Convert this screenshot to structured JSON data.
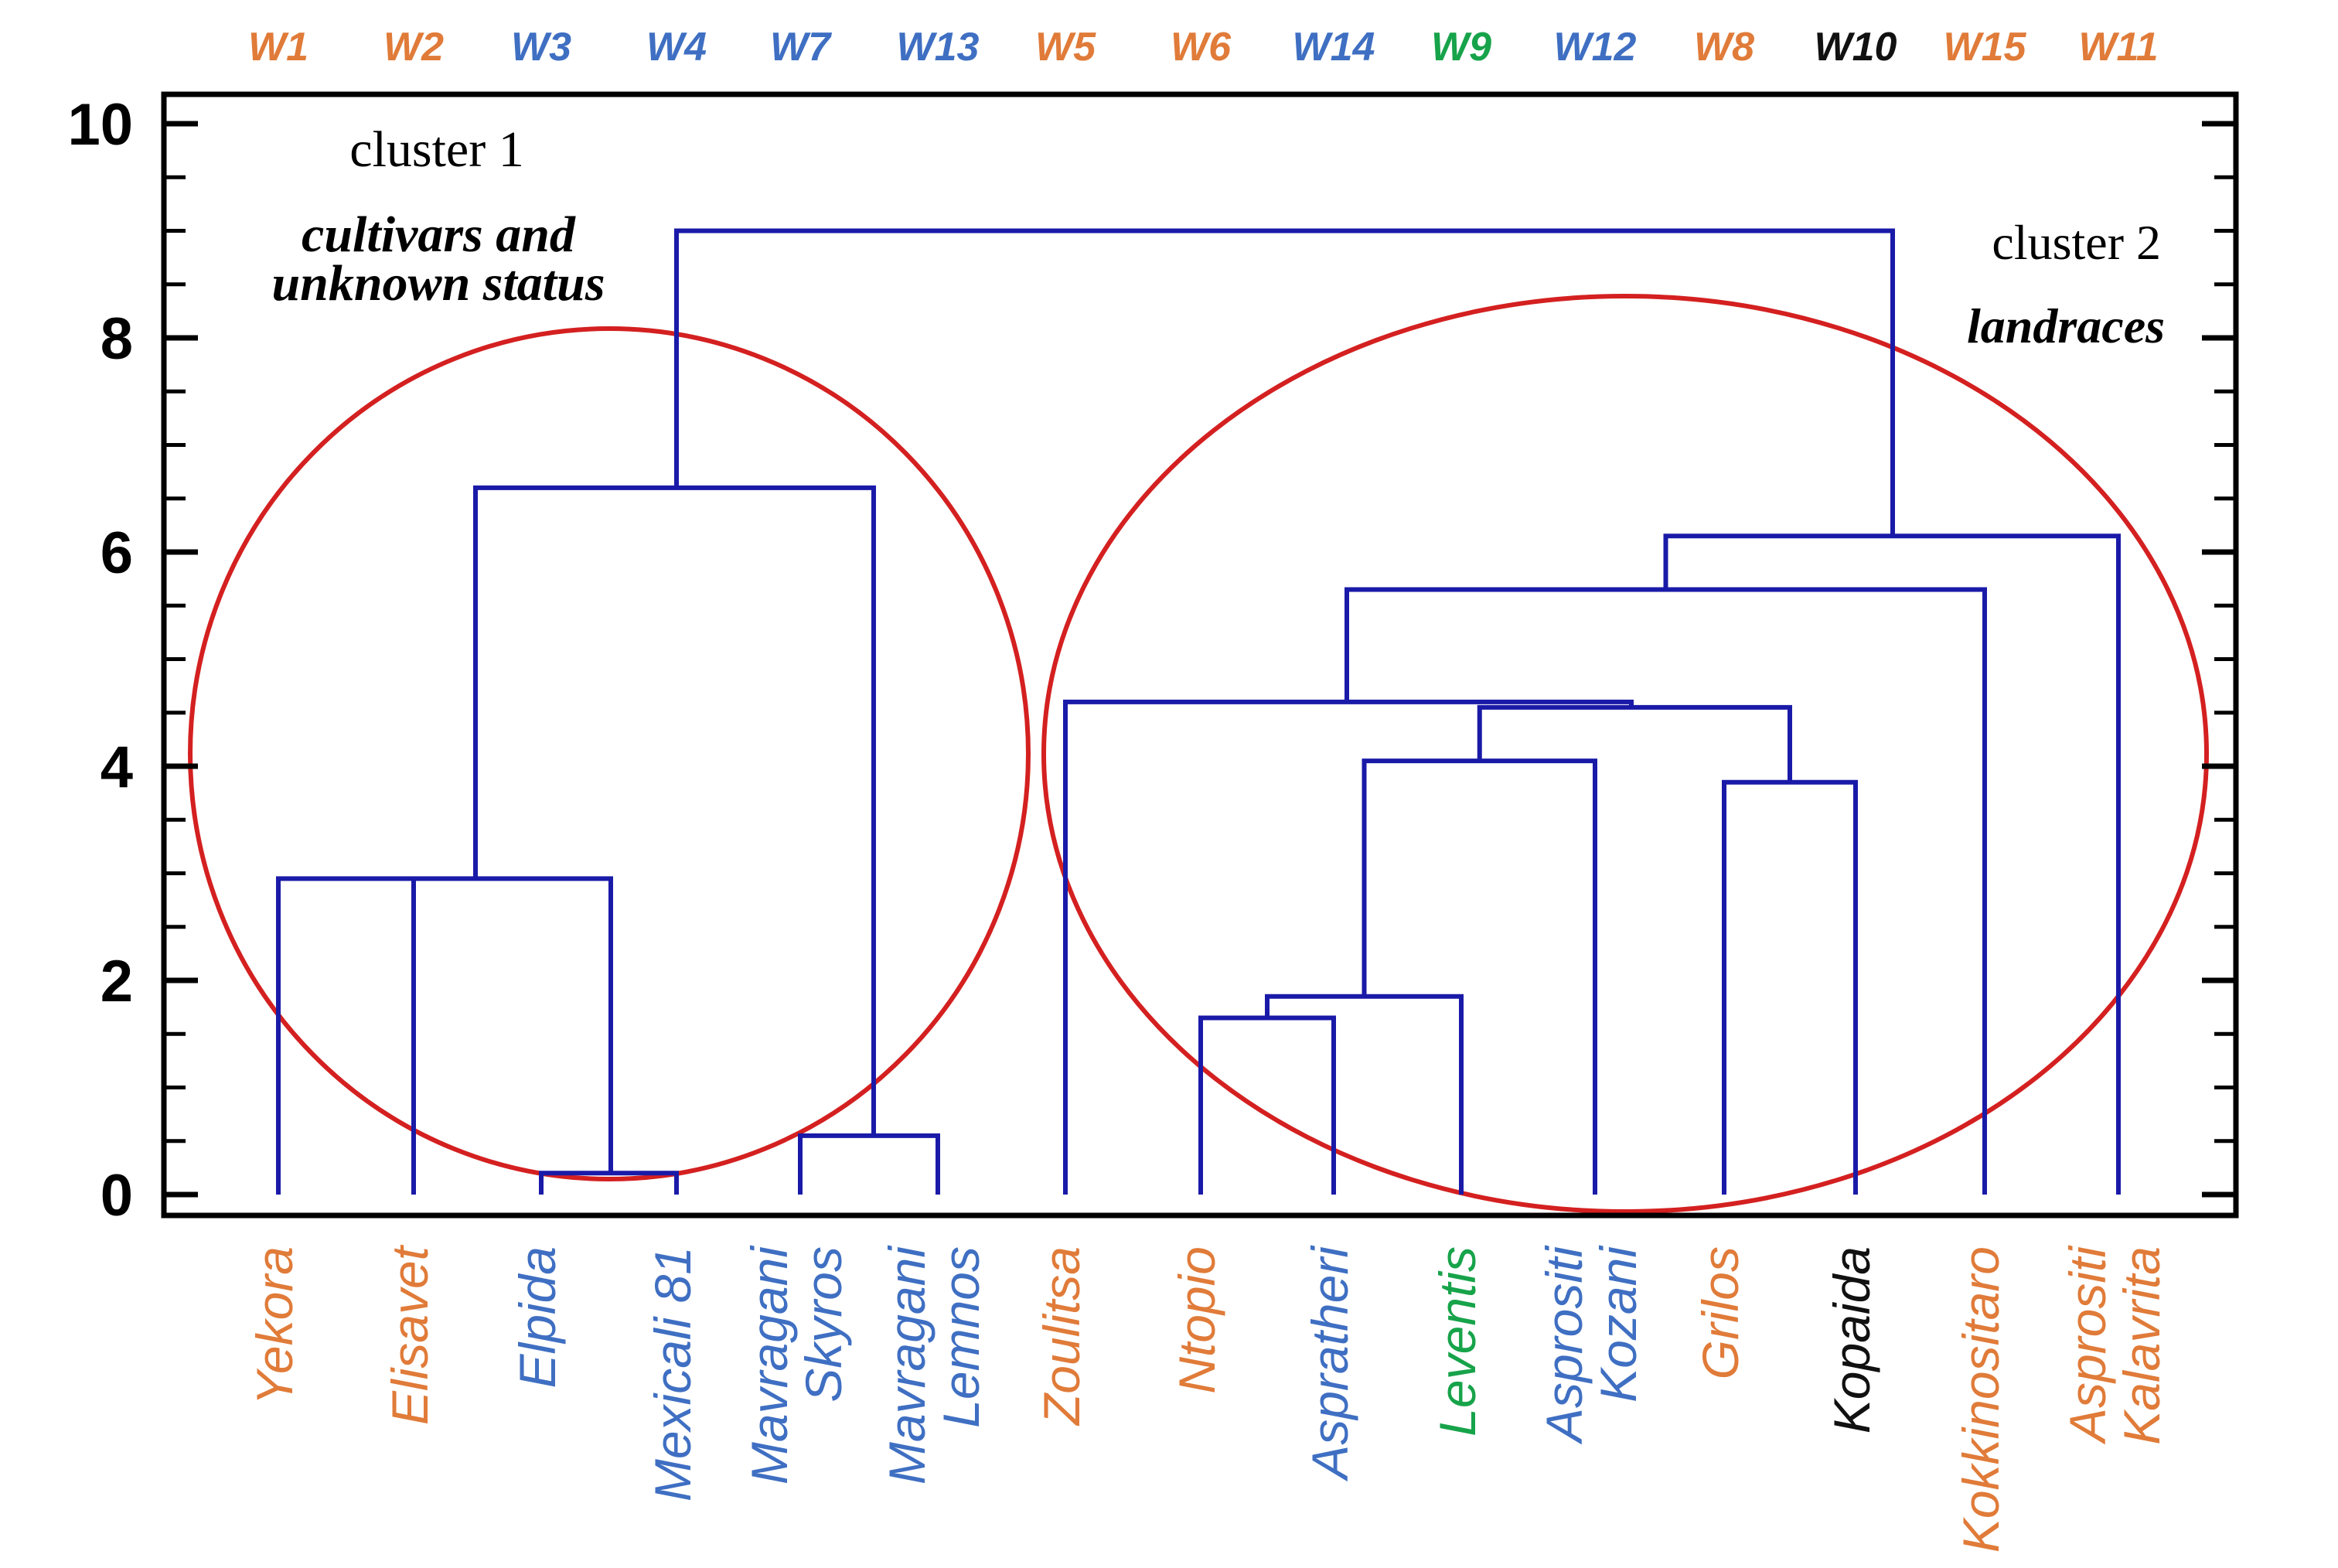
{
  "chart_data": {
    "type": "dendrogram",
    "y_axis": {
      "ylim": [
        0,
        10
      ],
      "ticks": [
        0,
        2,
        4,
        6,
        8,
        10
      ],
      "minor_step": 0.5
    },
    "leaves": [
      {
        "code": "W1",
        "name_lines": [
          "Yekora"
        ],
        "color": "#e07b39"
      },
      {
        "code": "W2",
        "name_lines": [
          "Elisavet"
        ],
        "color": "#e07b39"
      },
      {
        "code": "W3",
        "name_lines": [
          "Elpida"
        ],
        "color": "#3f6fc2"
      },
      {
        "code": "W4",
        "name_lines": [
          "Mexicali 81"
        ],
        "color": "#3f6fc2"
      },
      {
        "code": "W7",
        "name_lines": [
          "Mavragani",
          "Skyros"
        ],
        "color": "#3f6fc2"
      },
      {
        "code": "W13",
        "name_lines": [
          "Mavragani",
          "Lemnos"
        ],
        "color": "#3f6fc2"
      },
      {
        "code": "W5",
        "name_lines": [
          "Zoulitsa"
        ],
        "color": "#e07b39"
      },
      {
        "code": "W6",
        "name_lines": [
          "Ntopio"
        ],
        "color": "#e07b39"
      },
      {
        "code": "W14",
        "name_lines": [
          "Aspratheri"
        ],
        "color": "#3f6fc2"
      },
      {
        "code": "W9",
        "name_lines": [
          "Leventis"
        ],
        "color": "#17a34a"
      },
      {
        "code": "W12",
        "name_lines": [
          "Asprositi",
          "Kozani"
        ],
        "color": "#3f6fc2"
      },
      {
        "code": "W8",
        "name_lines": [
          "Grilos"
        ],
        "color": "#e07b39"
      },
      {
        "code": "W10",
        "name_lines": [
          "Kopaida"
        ],
        "color": "#111111"
      },
      {
        "code": "W15",
        "name_lines": [
          "Kokkinositaro"
        ],
        "color": "#e07b39"
      },
      {
        "code": "W11",
        "name_lines": [
          "Asprositi",
          "Kalavrita"
        ],
        "color": "#e07b39"
      }
    ],
    "merges": [
      {
        "children": [
          "W3",
          "W4"
        ],
        "height": 0.2
      },
      {
        "children": [
          "W7",
          "W13"
        ],
        "height": 0.55
      },
      {
        "children": [
          "W6",
          "W14"
        ],
        "height": 1.65
      },
      {
        "children": [
          "W6+W14",
          "W9"
        ],
        "height": 1.85
      },
      {
        "children": [
          "W8",
          "W10"
        ],
        "height": 3.85
      },
      {
        "children": [
          "W1",
          "W2",
          "W3+W4"
        ],
        "height": 2.95
      },
      {
        "children": [
          "W6+W14+W9",
          "W12"
        ],
        "height": 4.05
      },
      {
        "children": [
          "W6+W14+W9+W12",
          "W8+W10"
        ],
        "height": 4.55
      },
      {
        "children": [
          "W5",
          "W6..W10"
        ],
        "height": 4.6
      },
      {
        "children": [
          "W5..W10",
          "W15"
        ],
        "height": 5.65
      },
      {
        "children": [
          "W5..W15",
          "W11"
        ],
        "height": 6.15
      },
      {
        "children": [
          "W1..W4",
          "W7+W13"
        ],
        "height": 6.6
      },
      {
        "children": [
          "cluster 1",
          "cluster 2"
        ],
        "height": 9.0
      }
    ],
    "clusters": [
      {
        "title": "cluster 1",
        "subtitle_lines": [
          "cultivars and",
          "unknown status"
        ]
      },
      {
        "title": "cluster 2",
        "subtitle_lines": [
          "landraces"
        ]
      }
    ],
    "colors": {
      "branch": "#1a1aa8",
      "ellipse": "#d42020",
      "frame": "#000000"
    }
  }
}
